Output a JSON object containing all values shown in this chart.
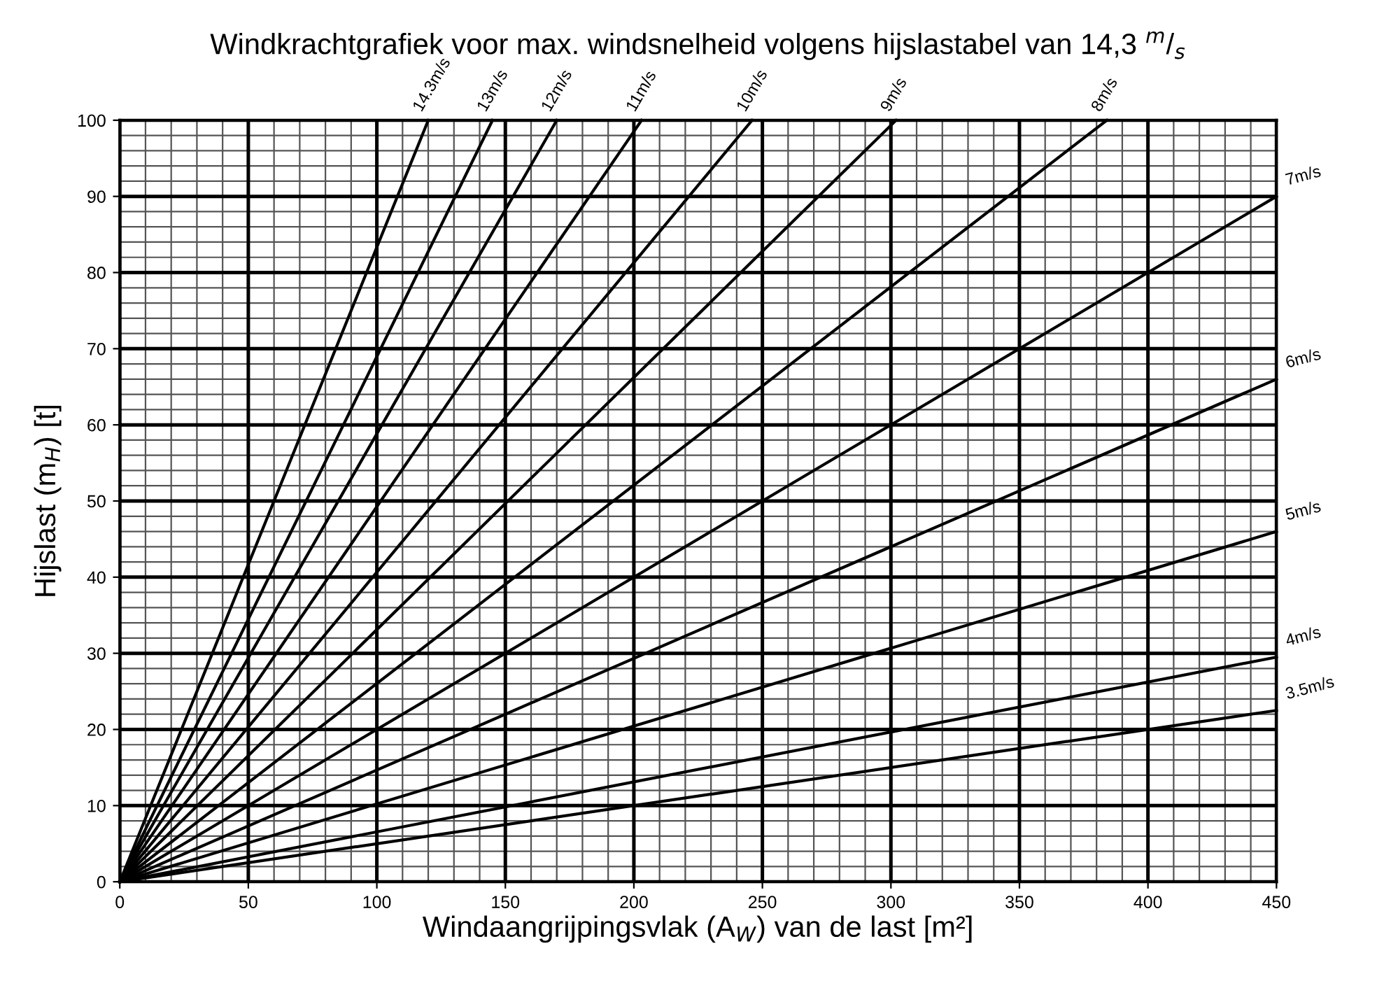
{
  "chart_data": {
    "type": "line",
    "title": "Windkrachtgrafiek voor max. windsnelheid volgens hijslastabel van 14,3 $^{m}$/$_{s}$",
    "xlabel": "Windaangrijpingsvlak (A$_{W}$) van de last [m²]",
    "ylabel": "Hijslast (m$_{H}$) [t]",
    "series": [
      {
        "name": "14.3m/s",
        "color": "#000000",
        "x": [
          0,
          120
        ],
        "values": [
          0,
          100
        ]
      },
      {
        "name": "13m/s",
        "color": "#000000",
        "x": [
          0,
          145
        ],
        "values": [
          0,
          100
        ]
      },
      {
        "name": "12m/s",
        "color": "#000000",
        "x": [
          0,
          170
        ],
        "values": [
          0,
          100
        ]
      },
      {
        "name": "11m/s",
        "color": "#000000",
        "x": [
          0,
          203
        ],
        "values": [
          0,
          100
        ]
      },
      {
        "name": "10m/s",
        "color": "#000000",
        "x": [
          0,
          246
        ],
        "values": [
          0,
          100
        ]
      },
      {
        "name": "9m/s",
        "color": "#000000",
        "x": [
          0,
          302
        ],
        "values": [
          0,
          100
        ]
      },
      {
        "name": "8m/s",
        "color": "#000000",
        "x": [
          0,
          384
        ],
        "values": [
          0,
          100
        ]
      },
      {
        "name": "7m/s",
        "color": "#000000",
        "x": [
          0,
          450
        ],
        "values": [
          0,
          90
        ]
      },
      {
        "name": "6m/s",
        "color": "#000000",
        "x": [
          0,
          450
        ],
        "values": [
          0,
          66
        ]
      },
      {
        "name": "5m/s",
        "color": "#000000",
        "x": [
          0,
          450
        ],
        "values": [
          0,
          46
        ]
      },
      {
        "name": "4m/s",
        "color": "#000000",
        "x": [
          0,
          450
        ],
        "values": [
          0,
          29.5
        ]
      },
      {
        "name": "3.5m/s",
        "color": "#000000",
        "x": [
          0,
          450
        ],
        "values": [
          0,
          22.5
        ]
      }
    ],
    "xlim": [
      0,
      450
    ],
    "ylim": [
      0,
      100
    ],
    "xticks": [
      0,
      50,
      100,
      150,
      200,
      250,
      300,
      350,
      400,
      450
    ],
    "yticks": [
      0,
      10,
      20,
      30,
      40,
      50,
      60,
      70,
      80,
      90,
      100
    ],
    "grid": true,
    "legend": false,
    "marker": "none",
    "line_style": "solid"
  }
}
